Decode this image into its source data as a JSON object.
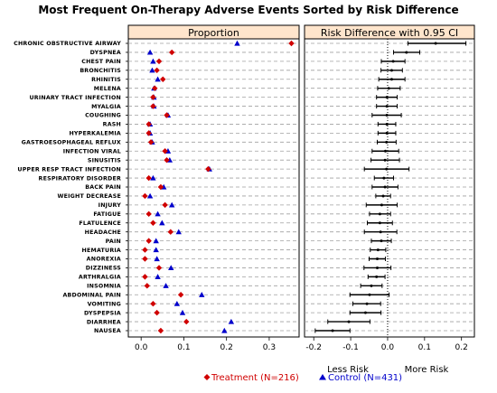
{
  "chart_data": {
    "type": "scatter",
    "title": "Most Frequent On-Therapy Adverse Events Sorted by Risk Difference",
    "categories": [
      "CHRONIC OBSTRUCTIVE AIRWAY",
      "DYSPNEA",
      "CHEST PAIN",
      "BRONCHITIS",
      "RHINITIS",
      "MELENA",
      "URINARY TRACT INFECTION",
      "MYALGIA",
      "COUGHING",
      "RASH",
      "HYPERKALEMIA",
      "GASTROESOPHAGEAL REFLUX",
      "INFECTION VIRAL",
      "SINUSITIS",
      "UPPER RESP TRACT INFECTION",
      "RESPIRATORY DISORDER",
      "BACK PAIN",
      "WEIGHT DECREASE",
      "INJURY",
      "FATIGUE",
      "FLATULENCE",
      "HEADACHE",
      "PAIN",
      "HEMATURIA",
      "ANOREXIA",
      "DIZZINESS",
      "ARTHRALGIA",
      "INSOMNIA",
      "ABDOMINAL PAIN",
      "VOMITING",
      "DYSPEPSIA",
      "DIARRHEA",
      "NAUSEA"
    ],
    "panels": [
      {
        "strip": "Proportion",
        "xlim": [
          -0.03,
          0.37
        ],
        "xticks": [
          "0.0",
          "0.1",
          "0.2",
          "0.3"
        ],
        "xtick_values": [
          0,
          0.1,
          0.2,
          0.3
        ],
        "series": [
          {
            "name": "Treatment (N=216)",
            "color": "#d00000",
            "marker": "diamond",
            "values": [
              0.352,
              0.072,
              0.042,
              0.037,
              0.051,
              0.032,
              0.028,
              0.028,
              0.06,
              0.018,
              0.018,
              0.023,
              0.056,
              0.06,
              0.157,
              0.018,
              0.046,
              0.009,
              0.056,
              0.018,
              0.028,
              0.069,
              0.018,
              0.009,
              0.009,
              0.042,
              0.009,
              0.014,
              0.093,
              0.028,
              0.037,
              0.106,
              0.046
            ]
          },
          {
            "name": "Control (N=431)",
            "color": "#0000cc",
            "marker": "triangle",
            "values": [
              0.225,
              0.021,
              0.028,
              0.026,
              0.039,
              0.03,
              0.03,
              0.03,
              0.063,
              0.021,
              0.021,
              0.026,
              0.063,
              0.067,
              0.16,
              0.028,
              0.053,
              0.021,
              0.072,
              0.039,
              0.049,
              0.088,
              0.035,
              0.035,
              0.037,
              0.07,
              0.039,
              0.058,
              0.142,
              0.084,
              0.097,
              0.211,
              0.195
            ]
          }
        ]
      },
      {
        "strip": "Risk Difference with 0.95 CI",
        "xlim": [
          -0.225,
          0.235
        ],
        "xticks": [
          "-0.2",
          "-0.1",
          "0.0",
          "0.1",
          "0.2"
        ],
        "xtick_values": [
          -0.2,
          -0.1,
          0,
          0.1,
          0.2
        ],
        "estimates": [
          0.13,
          0.051,
          0.015,
          0.011,
          0.011,
          0.003,
          -0.002,
          -0.002,
          -0.002,
          -0.002,
          -0.002,
          -0.003,
          -0.006,
          -0.007,
          -0.003,
          -0.01,
          -0.007,
          -0.012,
          -0.016,
          -0.021,
          -0.021,
          -0.019,
          -0.017,
          -0.026,
          -0.028,
          -0.028,
          -0.03,
          -0.044,
          -0.049,
          -0.056,
          -0.06,
          -0.105,
          -0.149
        ],
        "ci_low": [
          0.055,
          0.016,
          -0.017,
          -0.018,
          -0.024,
          -0.027,
          -0.03,
          -0.03,
          -0.042,
          -0.026,
          -0.026,
          -0.028,
          -0.042,
          -0.045,
          -0.063,
          -0.036,
          -0.042,
          -0.032,
          -0.058,
          -0.049,
          -0.055,
          -0.063,
          -0.044,
          -0.047,
          -0.05,
          -0.064,
          -0.053,
          -0.073,
          -0.102,
          -0.094,
          -0.102,
          -0.162,
          -0.196
        ],
        "ci_high": [
          0.212,
          0.087,
          0.047,
          0.04,
          0.047,
          0.034,
          0.026,
          0.026,
          0.037,
          0.022,
          0.022,
          0.023,
          0.03,
          0.032,
          0.058,
          0.016,
          0.028,
          0.008,
          0.026,
          0.008,
          0.013,
          0.025,
          0.01,
          -0.005,
          -0.006,
          0.009,
          -0.007,
          -0.015,
          0.004,
          -0.019,
          -0.018,
          -0.048,
          -0.102
        ]
      }
    ],
    "x_note_left": "Less Risk",
    "x_note_right": "More Risk",
    "reference_line": 0,
    "grid": "dashed horizontal per category",
    "legend_placement": "bottom"
  }
}
